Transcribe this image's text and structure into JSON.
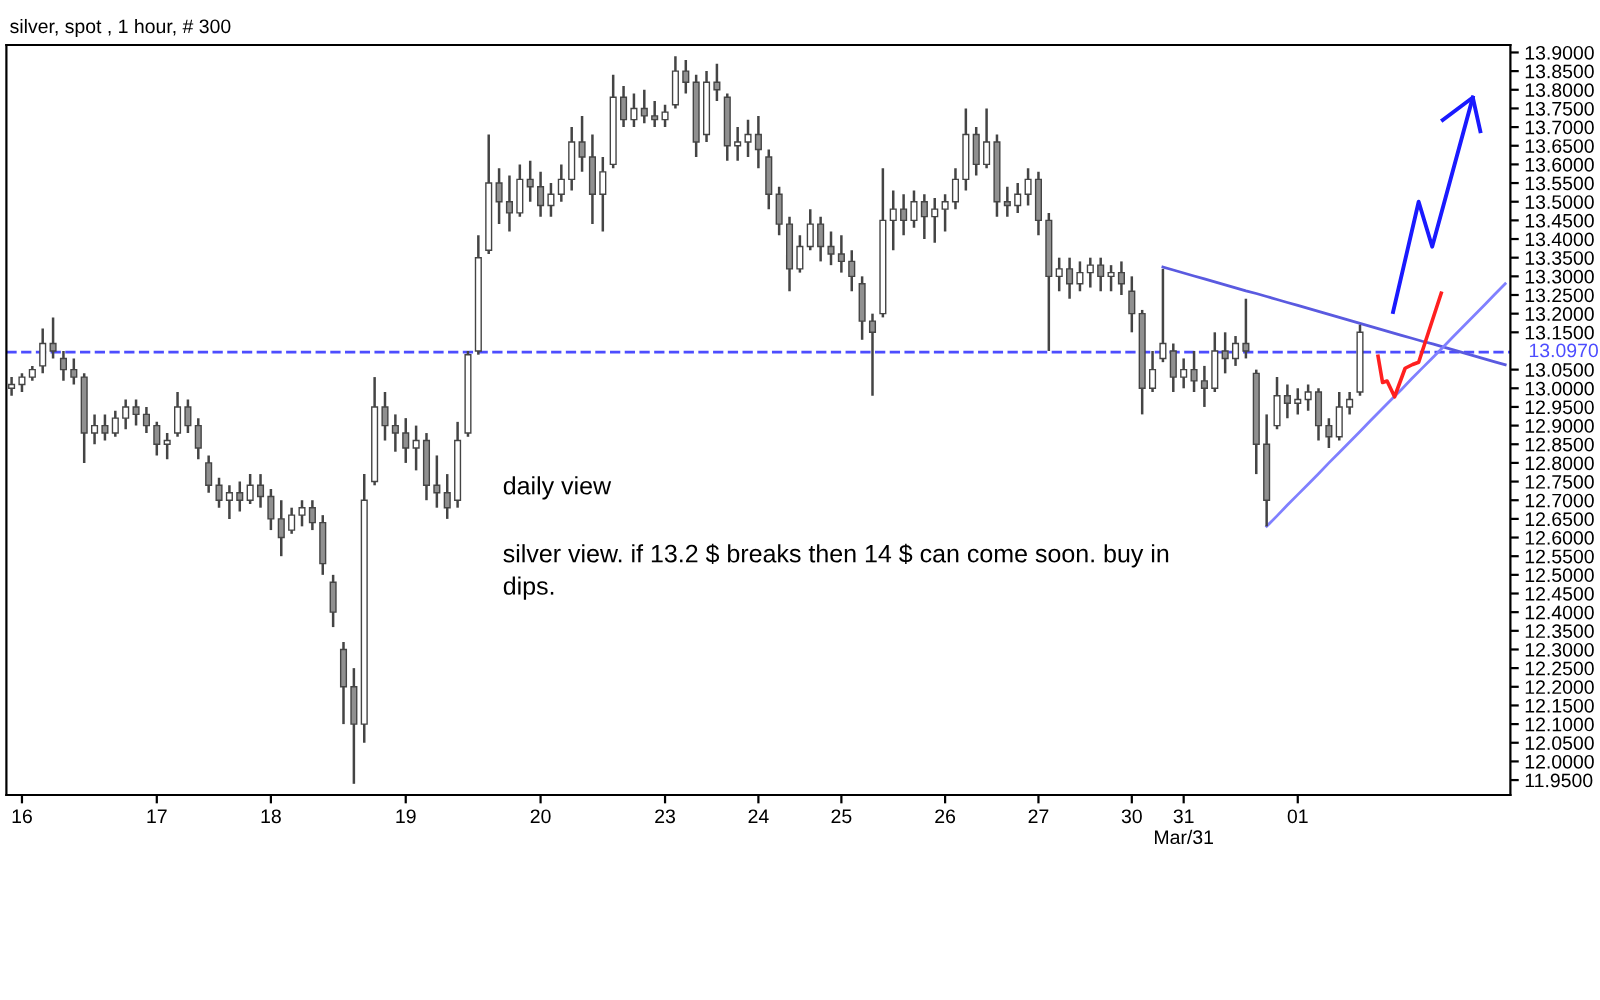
{
  "chart_data": {
    "type": "candlestick",
    "title": "silver, spot , 1 hour, # 300",
    "annotations": [
      "daily view",
      "silver view. if 13.2 $ breaks then 14 $ can come soon. buy in\ndips."
    ],
    "color": "#444444",
    "categories": [
      null,
      "16",
      null,
      null,
      null,
      null,
      null,
      null,
      null,
      null,
      null,
      null,
      null,
      null,
      "17",
      null,
      null,
      null,
      null,
      null,
      null,
      null,
      null,
      null,
      null,
      "18",
      null,
      null,
      null,
      null,
      null,
      null,
      null,
      null,
      null,
      null,
      null,
      null,
      "19",
      null,
      null,
      null,
      null,
      null,
      null,
      null,
      null,
      null,
      null,
      null,
      null,
      "20",
      null,
      null,
      null,
      null,
      null,
      null,
      null,
      null,
      null,
      null,
      null,
      "23",
      null,
      null,
      null,
      null,
      null,
      null,
      null,
      null,
      "24",
      null,
      null,
      null,
      null,
      null,
      null,
      null,
      "25",
      null,
      null,
      null,
      null,
      null,
      null,
      null,
      null,
      null,
      "26",
      null,
      null,
      null,
      null,
      null,
      null,
      null,
      null,
      "27",
      null,
      null,
      null,
      null,
      null,
      null,
      null,
      null,
      "30",
      null,
      null,
      null,
      null,
      "31\nMar/31",
      null,
      null,
      null,
      null,
      null,
      null,
      null,
      null,
      null,
      null,
      "01",
      null,
      null,
      null,
      null,
      null,
      null,
      null,
      null,
      null,
      null,
      null,
      null,
      null,
      null,
      null,
      null,
      null,
      null,
      null,
      null
    ],
    "ohlc": [
      [
        13.0,
        13.03,
        12.98,
        13.01
      ],
      [
        13.01,
        13.04,
        12.99,
        13.03
      ],
      [
        13.03,
        13.06,
        13.02,
        13.05
      ],
      [
        13.06,
        13.16,
        13.04,
        13.12
      ],
      [
        13.12,
        13.19,
        13.08,
        13.1
      ],
      [
        13.08,
        13.1,
        13.02,
        13.05
      ],
      [
        13.05,
        13.08,
        13.01,
        13.03
      ],
      [
        13.03,
        13.04,
        12.8,
        12.88
      ],
      [
        12.88,
        12.93,
        12.85,
        12.9
      ],
      [
        12.9,
        12.93,
        12.86,
        12.88
      ],
      [
        12.88,
        12.94,
        12.87,
        12.92
      ],
      [
        12.92,
        12.97,
        12.89,
        12.95
      ],
      [
        12.95,
        12.97,
        12.9,
        12.93
      ],
      [
        12.93,
        12.95,
        12.88,
        12.9
      ],
      [
        12.9,
        12.91,
        12.82,
        12.85
      ],
      [
        12.85,
        12.88,
        12.81,
        12.86
      ],
      [
        12.88,
        12.99,
        12.87,
        12.95
      ],
      [
        12.95,
        12.97,
        12.88,
        12.9
      ],
      [
        12.9,
        12.92,
        12.81,
        12.84
      ],
      [
        12.8,
        12.82,
        12.72,
        12.74
      ],
      [
        12.74,
        12.76,
        12.68,
        12.7
      ],
      [
        12.7,
        12.74,
        12.65,
        12.72
      ],
      [
        12.72,
        12.75,
        12.67,
        12.7
      ],
      [
        12.7,
        12.77,
        12.69,
        12.74
      ],
      [
        12.74,
        12.77,
        12.68,
        12.71
      ],
      [
        12.71,
        12.73,
        12.62,
        12.65
      ],
      [
        12.65,
        12.7,
        12.55,
        12.6
      ],
      [
        12.62,
        12.68,
        12.61,
        12.66
      ],
      [
        12.66,
        12.7,
        12.63,
        12.68
      ],
      [
        12.68,
        12.7,
        12.62,
        12.64
      ],
      [
        12.64,
        12.66,
        12.5,
        12.53
      ],
      [
        12.48,
        12.5,
        12.36,
        12.4
      ],
      [
        12.3,
        12.32,
        12.1,
        12.2
      ],
      [
        12.2,
        12.25,
        11.94,
        12.1
      ],
      [
        12.1,
        12.77,
        12.05,
        12.7
      ],
      [
        12.75,
        13.03,
        12.74,
        12.95
      ],
      [
        12.95,
        12.99,
        12.86,
        12.9
      ],
      [
        12.9,
        12.93,
        12.83,
        12.88
      ],
      [
        12.88,
        12.92,
        12.8,
        12.84
      ],
      [
        12.84,
        12.9,
        12.78,
        12.86
      ],
      [
        12.86,
        12.88,
        12.7,
        12.74
      ],
      [
        12.74,
        12.82,
        12.68,
        12.72
      ],
      [
        12.72,
        12.77,
        12.65,
        12.68
      ],
      [
        12.7,
        12.91,
        12.68,
        12.86
      ],
      [
        12.88,
        13.1,
        12.87,
        13.09
      ],
      [
        13.1,
        13.41,
        13.09,
        13.35
      ],
      [
        13.37,
        13.68,
        13.36,
        13.55
      ],
      [
        13.55,
        13.59,
        13.44,
        13.5
      ],
      [
        13.5,
        13.57,
        13.42,
        13.47
      ],
      [
        13.47,
        13.6,
        13.46,
        13.56
      ],
      [
        13.56,
        13.61,
        13.5,
        13.54
      ],
      [
        13.54,
        13.58,
        13.46,
        13.49
      ],
      [
        13.49,
        13.55,
        13.46,
        13.52
      ],
      [
        13.52,
        13.6,
        13.5,
        13.56
      ],
      [
        13.56,
        13.7,
        13.53,
        13.66
      ],
      [
        13.66,
        13.73,
        13.58,
        13.62
      ],
      [
        13.62,
        13.68,
        13.44,
        13.52
      ],
      [
        13.52,
        13.62,
        13.42,
        13.58
      ],
      [
        13.6,
        13.84,
        13.59,
        13.78
      ],
      [
        13.78,
        13.81,
        13.7,
        13.72
      ],
      [
        13.72,
        13.79,
        13.7,
        13.75
      ],
      [
        13.75,
        13.8,
        13.71,
        13.73
      ],
      [
        13.73,
        13.77,
        13.7,
        13.72
      ],
      [
        13.72,
        13.76,
        13.7,
        13.74
      ],
      [
        13.76,
        13.89,
        13.75,
        13.85
      ],
      [
        13.85,
        13.88,
        13.79,
        13.82
      ],
      [
        13.82,
        13.84,
        13.62,
        13.66
      ],
      [
        13.68,
        13.85,
        13.66,
        13.82
      ],
      [
        13.82,
        13.87,
        13.77,
        13.8
      ],
      [
        13.78,
        13.79,
        13.61,
        13.65
      ],
      [
        13.65,
        13.7,
        13.61,
        13.66
      ],
      [
        13.66,
        13.72,
        13.62,
        13.68
      ],
      [
        13.68,
        13.73,
        13.59,
        13.64
      ],
      [
        13.62,
        13.64,
        13.48,
        13.52
      ],
      [
        13.52,
        13.54,
        13.41,
        13.44
      ],
      [
        13.44,
        13.46,
        13.26,
        13.32
      ],
      [
        13.32,
        13.41,
        13.31,
        13.38
      ],
      [
        13.38,
        13.48,
        13.37,
        13.44
      ],
      [
        13.44,
        13.46,
        13.34,
        13.38
      ],
      [
        13.38,
        13.42,
        13.33,
        13.36
      ],
      [
        13.36,
        13.41,
        13.31,
        13.34
      ],
      [
        13.34,
        13.37,
        13.26,
        13.3
      ],
      [
        13.28,
        13.3,
        13.13,
        13.18
      ],
      [
        13.18,
        13.2,
        12.98,
        13.15
      ],
      [
        13.2,
        13.59,
        13.19,
        13.45
      ],
      [
        13.45,
        13.53,
        13.37,
        13.48
      ],
      [
        13.48,
        13.52,
        13.41,
        13.45
      ],
      [
        13.45,
        13.53,
        13.43,
        13.5
      ],
      [
        13.5,
        13.52,
        13.4,
        13.46
      ],
      [
        13.46,
        13.51,
        13.39,
        13.48
      ],
      [
        13.48,
        13.52,
        13.42,
        13.5
      ],
      [
        13.5,
        13.59,
        13.48,
        13.56
      ],
      [
        13.56,
        13.75,
        13.53,
        13.68
      ],
      [
        13.68,
        13.7,
        13.57,
        13.6
      ],
      [
        13.6,
        13.75,
        13.59,
        13.66
      ],
      [
        13.66,
        13.68,
        13.46,
        13.5
      ],
      [
        13.5,
        13.54,
        13.46,
        13.49
      ],
      [
        13.49,
        13.55,
        13.47,
        13.52
      ],
      [
        13.52,
        13.59,
        13.49,
        13.56
      ],
      [
        13.56,
        13.58,
        13.41,
        13.45
      ],
      [
        13.45,
        13.47,
        13.1,
        13.3
      ],
      [
        13.3,
        13.35,
        13.26,
        13.32
      ],
      [
        13.32,
        13.35,
        13.24,
        13.28
      ],
      [
        13.28,
        13.34,
        13.26,
        13.31
      ],
      [
        13.31,
        13.35,
        13.27,
        13.33
      ],
      [
        13.33,
        13.35,
        13.26,
        13.3
      ],
      [
        13.3,
        13.33,
        13.26,
        13.31
      ],
      [
        13.31,
        13.34,
        13.25,
        13.28
      ],
      [
        13.26,
        13.3,
        13.15,
        13.2
      ],
      [
        13.2,
        13.21,
        12.93,
        13.0
      ],
      [
        13.0,
        13.1,
        12.99,
        13.05
      ],
      [
        13.08,
        13.32,
        13.07,
        13.12
      ],
      [
        13.1,
        13.12,
        12.99,
        13.03
      ],
      [
        13.03,
        13.08,
        13.0,
        13.05
      ],
      [
        13.05,
        13.1,
        12.99,
        13.02
      ],
      [
        13.02,
        13.06,
        12.95,
        13.0
      ],
      [
        13.0,
        13.15,
        12.99,
        13.1
      ],
      [
        13.1,
        13.15,
        13.04,
        13.08
      ],
      [
        13.08,
        13.14,
        13.06,
        13.12
      ],
      [
        13.12,
        13.24,
        13.08,
        13.1
      ],
      [
        13.04,
        13.05,
        12.77,
        12.85
      ],
      [
        12.85,
        12.93,
        12.63,
        12.7
      ],
      [
        12.9,
        13.03,
        12.89,
        12.98
      ],
      [
        12.98,
        13.01,
        12.92,
        12.96
      ],
      [
        12.96,
        13.0,
        12.93,
        12.97
      ],
      [
        12.97,
        13.01,
        12.94,
        12.99
      ],
      [
        12.99,
        13.0,
        12.86,
        12.9
      ],
      [
        12.9,
        12.92,
        12.84,
        12.87
      ],
      [
        12.87,
        12.99,
        12.86,
        12.95
      ],
      [
        12.95,
        12.99,
        12.93,
        12.97
      ],
      [
        12.99,
        13.17,
        12.98,
        13.15
      ],
      null,
      null,
      null,
      null,
      null,
      null,
      null,
      null,
      null,
      null,
      null,
      null,
      null,
      null
    ],
    "series": [
      {
        "type": "line",
        "color": "#5a5ae0",
        "values": [
          null,
          null,
          null,
          null,
          null,
          null,
          null,
          null,
          null,
          null,
          null,
          null,
          null,
          null,
          null,
          null,
          null,
          null,
          null,
          null,
          null,
          null,
          null,
          null,
          null,
          null,
          null,
          null,
          null,
          null,
          null,
          null,
          null,
          null,
          null,
          null,
          null,
          null,
          null,
          null,
          null,
          null,
          null,
          null,
          null,
          null,
          null,
          null,
          null,
          null,
          null,
          null,
          null,
          null,
          null,
          null,
          null,
          null,
          null,
          null,
          null,
          null,
          null,
          null,
          null,
          null,
          null,
          null,
          null,
          null,
          null,
          null,
          null,
          null,
          null,
          null,
          null,
          null,
          null,
          null,
          null,
          null,
          null,
          null,
          null,
          null,
          null,
          null,
          null,
          null,
          null,
          null,
          null,
          null,
          null,
          null,
          null,
          null,
          null,
          null,
          null,
          null,
          null,
          null,
          null,
          null,
          null,
          null,
          null,
          null,
          null,
          13.325,
          13.317,
          13.309,
          13.301,
          13.293,
          13.285,
          13.277,
          13.269,
          13.261,
          13.254,
          13.246,
          13.238,
          13.23,
          13.222,
          13.214,
          13.206,
          13.198,
          13.19,
          13.182,
          13.174,
          13.166,
          13.158,
          13.15,
          13.142,
          13.134,
          13.126,
          13.119,
          13.111,
          13.103,
          13.095,
          13.087,
          13.079,
          13.071,
          13.063
        ]
      },
      {
        "type": "line",
        "color": "#8080ff",
        "values": [
          null,
          null,
          null,
          null,
          null,
          null,
          null,
          null,
          null,
          null,
          null,
          null,
          null,
          null,
          null,
          null,
          null,
          null,
          null,
          null,
          null,
          null,
          null,
          null,
          null,
          null,
          null,
          null,
          null,
          null,
          null,
          null,
          null,
          null,
          null,
          null,
          null,
          null,
          null,
          null,
          null,
          null,
          null,
          null,
          null,
          null,
          null,
          null,
          null,
          null,
          null,
          null,
          null,
          null,
          null,
          null,
          null,
          null,
          null,
          null,
          null,
          null,
          null,
          null,
          null,
          null,
          null,
          null,
          null,
          null,
          null,
          null,
          null,
          null,
          null,
          null,
          null,
          null,
          null,
          null,
          null,
          null,
          null,
          null,
          null,
          null,
          null,
          null,
          null,
          null,
          null,
          null,
          null,
          null,
          null,
          null,
          null,
          null,
          null,
          null,
          null,
          null,
          null,
          null,
          null,
          null,
          null,
          null,
          null,
          null,
          null,
          null,
          null,
          null,
          null,
          null,
          null,
          null,
          null,
          null,
          null,
          12.63,
          12.658,
          12.687,
          12.715,
          12.743,
          12.771,
          12.8,
          12.828,
          12.856,
          12.884,
          12.913,
          12.941,
          12.969,
          12.997,
          13.026,
          13.054,
          13.082,
          13.11,
          13.139,
          13.167,
          13.195,
          13.223,
          13.252,
          13.28
        ]
      }
    ],
    "ref_lines": [
      {
        "axis": "y",
        "value": 13.097,
        "label": "13.0970",
        "color": "#4d4dff",
        "line_style": "dashed"
      }
    ],
    "ylim": [
      11.91,
      13.92
    ],
    "yticks": [
      {
        "value": 11.95,
        "label": "11.9500"
      },
      {
        "value": 12.0,
        "label": "12.0000"
      },
      {
        "value": 12.05,
        "label": "12.0500"
      },
      {
        "value": 12.1,
        "label": "12.1000"
      },
      {
        "value": 12.15,
        "label": "12.1500"
      },
      {
        "value": 12.2,
        "label": "12.2000"
      },
      {
        "value": 12.25,
        "label": "12.2500"
      },
      {
        "value": 12.3,
        "label": "12.3000"
      },
      {
        "value": 12.35,
        "label": "12.3500"
      },
      {
        "value": 12.4,
        "label": "12.4000"
      },
      {
        "value": 12.45,
        "label": "12.4500"
      },
      {
        "value": 12.5,
        "label": "12.5000"
      },
      {
        "value": 12.55,
        "label": "12.5500"
      },
      {
        "value": 12.6,
        "label": "12.6000"
      },
      {
        "value": 12.65,
        "label": "12.6500"
      },
      {
        "value": 12.7,
        "label": "12.7000"
      },
      {
        "value": 12.75,
        "label": "12.7500"
      },
      {
        "value": 12.8,
        "label": "12.8000"
      },
      {
        "value": 12.85,
        "label": "12.8500"
      },
      {
        "value": 12.9,
        "label": "12.9000"
      },
      {
        "value": 12.95,
        "label": "12.9500"
      },
      {
        "value": 13.0,
        "label": "13.0000"
      },
      {
        "value": 13.05,
        "label": "13.0500"
      },
      {
        "value": 13.15,
        "label": "13.1500"
      },
      {
        "value": 13.2,
        "label": "13.2000"
      },
      {
        "value": 13.25,
        "label": "13.2500"
      },
      {
        "value": 13.3,
        "label": "13.3000"
      },
      {
        "value": 13.35,
        "label": "13.3500"
      },
      {
        "value": 13.4,
        "label": "13.4000"
      },
      {
        "value": 13.45,
        "label": "13.4500"
      },
      {
        "value": 13.5,
        "label": "13.5000"
      },
      {
        "value": 13.55,
        "label": "13.5500"
      },
      {
        "value": 13.6,
        "label": "13.6000"
      },
      {
        "value": 13.65,
        "label": "13.6500"
      },
      {
        "value": 13.7,
        "label": "13.7000"
      },
      {
        "value": 13.75,
        "label": "13.7500"
      },
      {
        "value": 13.8,
        "label": "13.8000"
      },
      {
        "value": 13.85,
        "label": "13.8500"
      },
      {
        "value": 13.9,
        "label": "13.9000"
      }
    ],
    "grid": false,
    "legend": false
  }
}
